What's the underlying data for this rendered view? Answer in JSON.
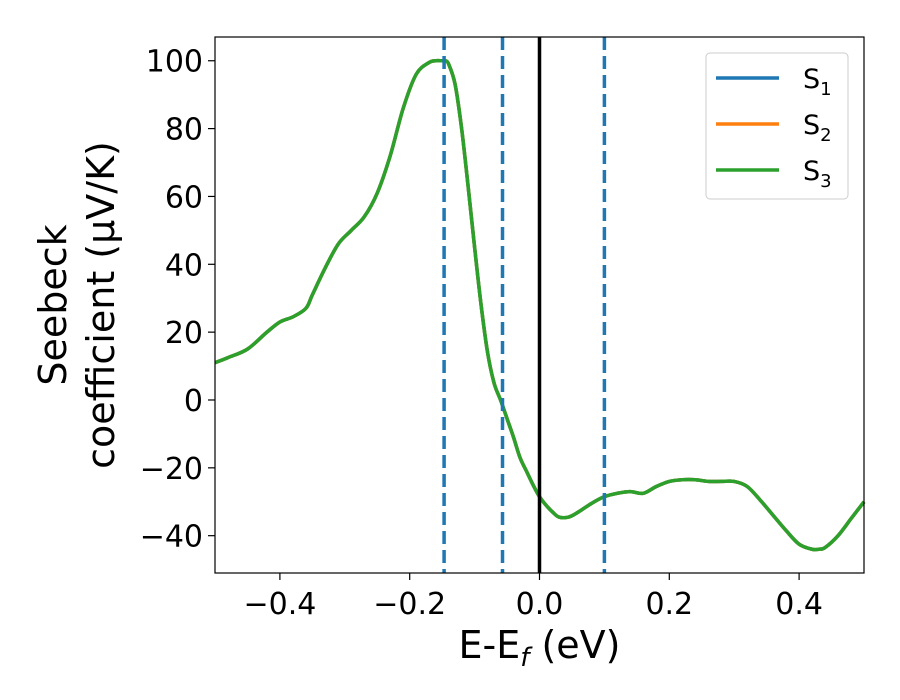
{
  "chart_data": {
    "type": "line",
    "xlabel": "E-E",
    "xlabel_sub": "f",
    "xlabel_unit": " (eV)",
    "ylabel_line1": "Seebeck",
    "ylabel_line2": "coefficient  (μV/K)",
    "xlim": [
      -0.5,
      0.5
    ],
    "ylim": [
      -51,
      107
    ],
    "xticks": [
      -0.4,
      -0.2,
      0.0,
      0.2,
      0.4
    ],
    "xtick_labels": [
      "−0.4",
      "−0.2",
      "0.0",
      "0.2",
      "0.4"
    ],
    "yticks": [
      -40,
      -20,
      0,
      20,
      40,
      60,
      80,
      100
    ],
    "ytick_labels": [
      "−40",
      "−20",
      "0",
      "20",
      "40",
      "60",
      "80",
      "100"
    ],
    "grid": false,
    "legend_position": "top-right",
    "series": [
      {
        "name": "S",
        "sub": "1",
        "color": "#1f77b4"
      },
      {
        "name": "S",
        "sub": "2",
        "color": "#ff7f0e"
      },
      {
        "name": "S",
        "sub": "3",
        "color": "#2ca02c"
      }
    ],
    "curve": {
      "x": [
        -0.5,
        -0.48,
        -0.45,
        -0.42,
        -0.4,
        -0.38,
        -0.36,
        -0.35,
        -0.33,
        -0.31,
        -0.29,
        -0.27,
        -0.25,
        -0.23,
        -0.21,
        -0.19,
        -0.17,
        -0.16,
        -0.15,
        -0.145,
        -0.14,
        -0.13,
        -0.12,
        -0.11,
        -0.1,
        -0.09,
        -0.08,
        -0.07,
        -0.06,
        -0.05,
        -0.04,
        -0.03,
        -0.02,
        -0.01,
        0.0,
        0.01,
        0.02,
        0.03,
        0.045,
        0.06,
        0.08,
        0.1,
        0.12,
        0.14,
        0.16,
        0.18,
        0.2,
        0.22,
        0.24,
        0.26,
        0.28,
        0.3,
        0.32,
        0.34,
        0.36,
        0.38,
        0.4,
        0.42,
        0.43,
        0.44,
        0.46,
        0.48,
        0.5
      ],
      "y": [
        11,
        12.5,
        15,
        20,
        23,
        24.5,
        27,
        31,
        39,
        46,
        50,
        54,
        61,
        72,
        86,
        96,
        99.5,
        100,
        100,
        100,
        99,
        93,
        80,
        63,
        45,
        28,
        14,
        5,
        0,
        -5.5,
        -11,
        -17,
        -21,
        -25,
        -28.5,
        -31,
        -33,
        -34.5,
        -34.5,
        -33,
        -30.5,
        -28.5,
        -27.5,
        -27,
        -27.5,
        -25.5,
        -24,
        -23.5,
        -23.5,
        -24,
        -24,
        -24,
        -25.5,
        -29.5,
        -34,
        -38.5,
        -42.5,
        -44,
        -44,
        -43.5,
        -40,
        -35,
        -30
      ]
    },
    "vlines_dashed": [
      -0.147,
      -0.057,
      0.1
    ],
    "vline_dashed_color": "#1f77b4",
    "vline_solid": 0.0,
    "vline_solid_color": "#000000"
  }
}
